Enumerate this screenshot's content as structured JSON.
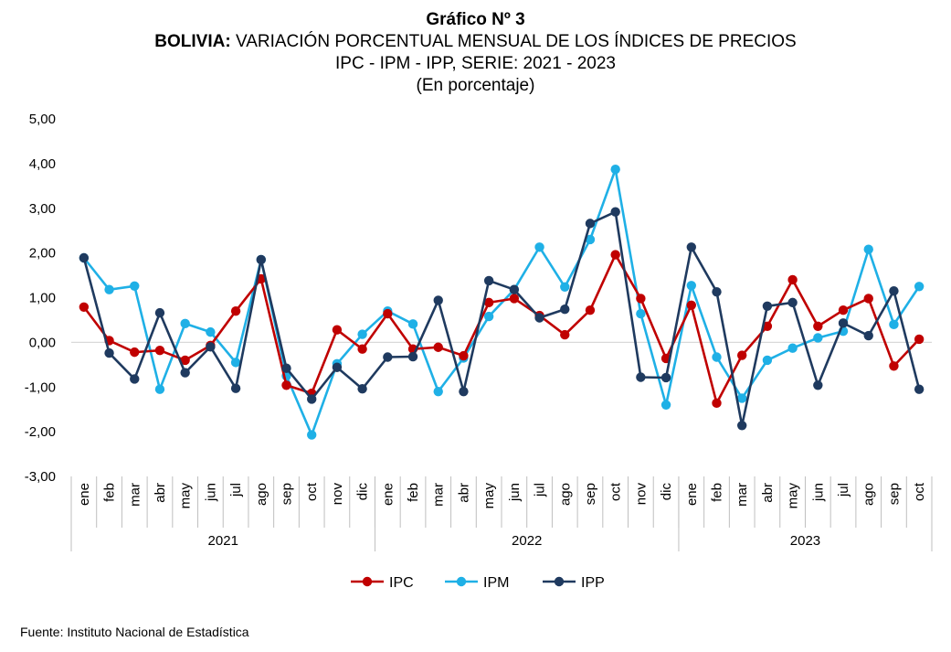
{
  "header": {
    "line1": "Gráfico Nº 3",
    "line2_bold": "BOLIVIA:",
    "line2_rest": " VARIACIÓN PORCENTUAL MENSUAL DE LOS ÍNDICES DE PRECIOS",
    "line3": "IPC - IPM - IPP, SERIE: 2021 - 2023",
    "line4": "(En porcentaje)"
  },
  "source": "Fuente: Instituto Nacional de Estadística",
  "colors": {
    "IPC": "#c00000",
    "IPM": "#1fb0e6",
    "IPP": "#1f3a5f",
    "grid": "#d9d9d9",
    "axis": "#bfbfbf"
  },
  "chart_data": {
    "type": "line",
    "title": "BOLIVIA: VARIACIÓN PORCENTUAL MENSUAL DE LOS ÍNDICES DE PRECIOS",
    "ylim": [
      -3,
      5
    ],
    "yticks": [
      "5,00",
      "4,00",
      "3,00",
      "2,00",
      "1,00",
      "0,00",
      "-1,00",
      "-2,00",
      "-3,00"
    ],
    "grid": "zero line only",
    "legend": "bottom-center",
    "groups": [
      {
        "label": "2021",
        "count": 12
      },
      {
        "label": "2022",
        "count": 12
      },
      {
        "label": "2023",
        "count": 10
      }
    ],
    "categories": [
      "ene",
      "feb",
      "mar",
      "abr",
      "may",
      "jun",
      "jul",
      "ago",
      "sep",
      "oct",
      "nov",
      "dic",
      "ene",
      "feb",
      "mar",
      "abr",
      "may",
      "jun",
      "jul",
      "ago",
      "sep",
      "oct",
      "nov",
      "dic",
      "ene",
      "feb",
      "mar",
      "abr",
      "may",
      "jun",
      "jul",
      "ago",
      "sep",
      "oct"
    ],
    "series": [
      {
        "name": "IPC",
        "values": [
          0.79,
          0.04,
          -0.22,
          -0.18,
          -0.4,
          -0.07,
          0.7,
          1.42,
          -0.96,
          -1.14,
          0.28,
          -0.15,
          0.64,
          -0.15,
          -0.11,
          -0.3,
          0.89,
          0.98,
          0.6,
          0.17,
          0.72,
          1.96,
          0.98,
          -0.36,
          0.83,
          -1.36,
          -0.29,
          0.36,
          1.4,
          0.36,
          0.72,
          0.98,
          -0.53,
          0.07
        ]
      },
      {
        "name": "IPM",
        "values": [
          1.89,
          1.18,
          1.26,
          -1.05,
          0.42,
          0.23,
          -0.45,
          1.85,
          -0.75,
          -2.07,
          -0.48,
          0.18,
          0.7,
          0.41,
          -1.1,
          -0.35,
          0.58,
          1.18,
          2.13,
          1.24,
          2.3,
          3.87,
          0.64,
          -1.4,
          1.27,
          -0.33,
          -1.25,
          -0.4,
          -0.13,
          0.1,
          0.25,
          2.08,
          0.4,
          1.25
        ]
      },
      {
        "name": "IPP",
        "values": [
          1.89,
          -0.24,
          -0.82,
          0.66,
          -0.68,
          -0.1,
          -1.03,
          1.85,
          -0.58,
          -1.27,
          -0.56,
          -1.04,
          -0.33,
          -0.32,
          0.94,
          -1.1,
          1.38,
          1.18,
          0.55,
          0.74,
          2.66,
          2.92,
          -0.78,
          -0.79,
          2.13,
          1.13,
          -1.86,
          0.81,
          0.89,
          -0.96,
          0.43,
          0.15,
          1.15,
          -1.05
        ]
      }
    ]
  }
}
